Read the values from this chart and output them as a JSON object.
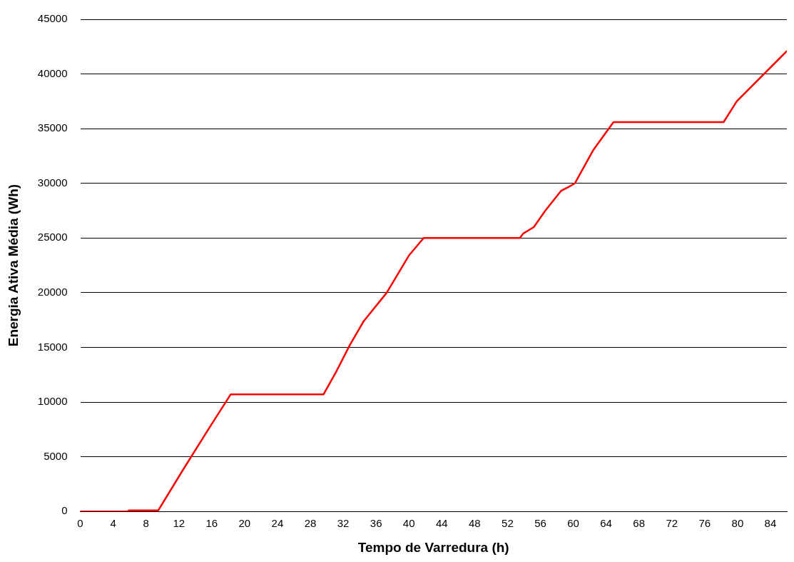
{
  "chart_data": {
    "type": "line",
    "xlabel": "Tempo de Varredura (h)",
    "ylabel": "Energia Ativa Média (Wh)",
    "x": [
      0,
      5.8,
      5.9,
      9.5,
      12.5,
      15.5,
      18.3,
      29.6,
      31.1,
      32.8,
      34.5,
      37.3,
      40,
      41.8,
      53.5,
      53.9,
      55.2,
      56.6,
      58.5,
      59.5,
      60.2,
      62.4,
      64.9,
      78.3,
      79.9,
      86
    ],
    "series": [
      {
        "color": "#ff0000",
        "values": [
          0,
          0,
          100,
          100,
          3800,
          7400,
          10700,
          10700,
          12700,
          15200,
          17400,
          20000,
          23400,
          25000,
          25000,
          25400,
          26000,
          27500,
          29300,
          29700,
          30000,
          33000,
          35600,
          35600,
          37500,
          42100
        ]
      }
    ],
    "xlim": [
      0,
      86
    ],
    "xticks": [
      0,
      4,
      8,
      12,
      16,
      20,
      24,
      28,
      32,
      36,
      40,
      44,
      48,
      52,
      56,
      60,
      64,
      68,
      72,
      76,
      80,
      84
    ],
    "ylim": [
      0,
      45000
    ],
    "yticks": [
      0,
      5000,
      10000,
      15000,
      20000,
      25000,
      30000,
      35000,
      40000,
      45000
    ],
    "grid": "y",
    "legend": false,
    "marker": "none",
    "line_style": "solid"
  }
}
